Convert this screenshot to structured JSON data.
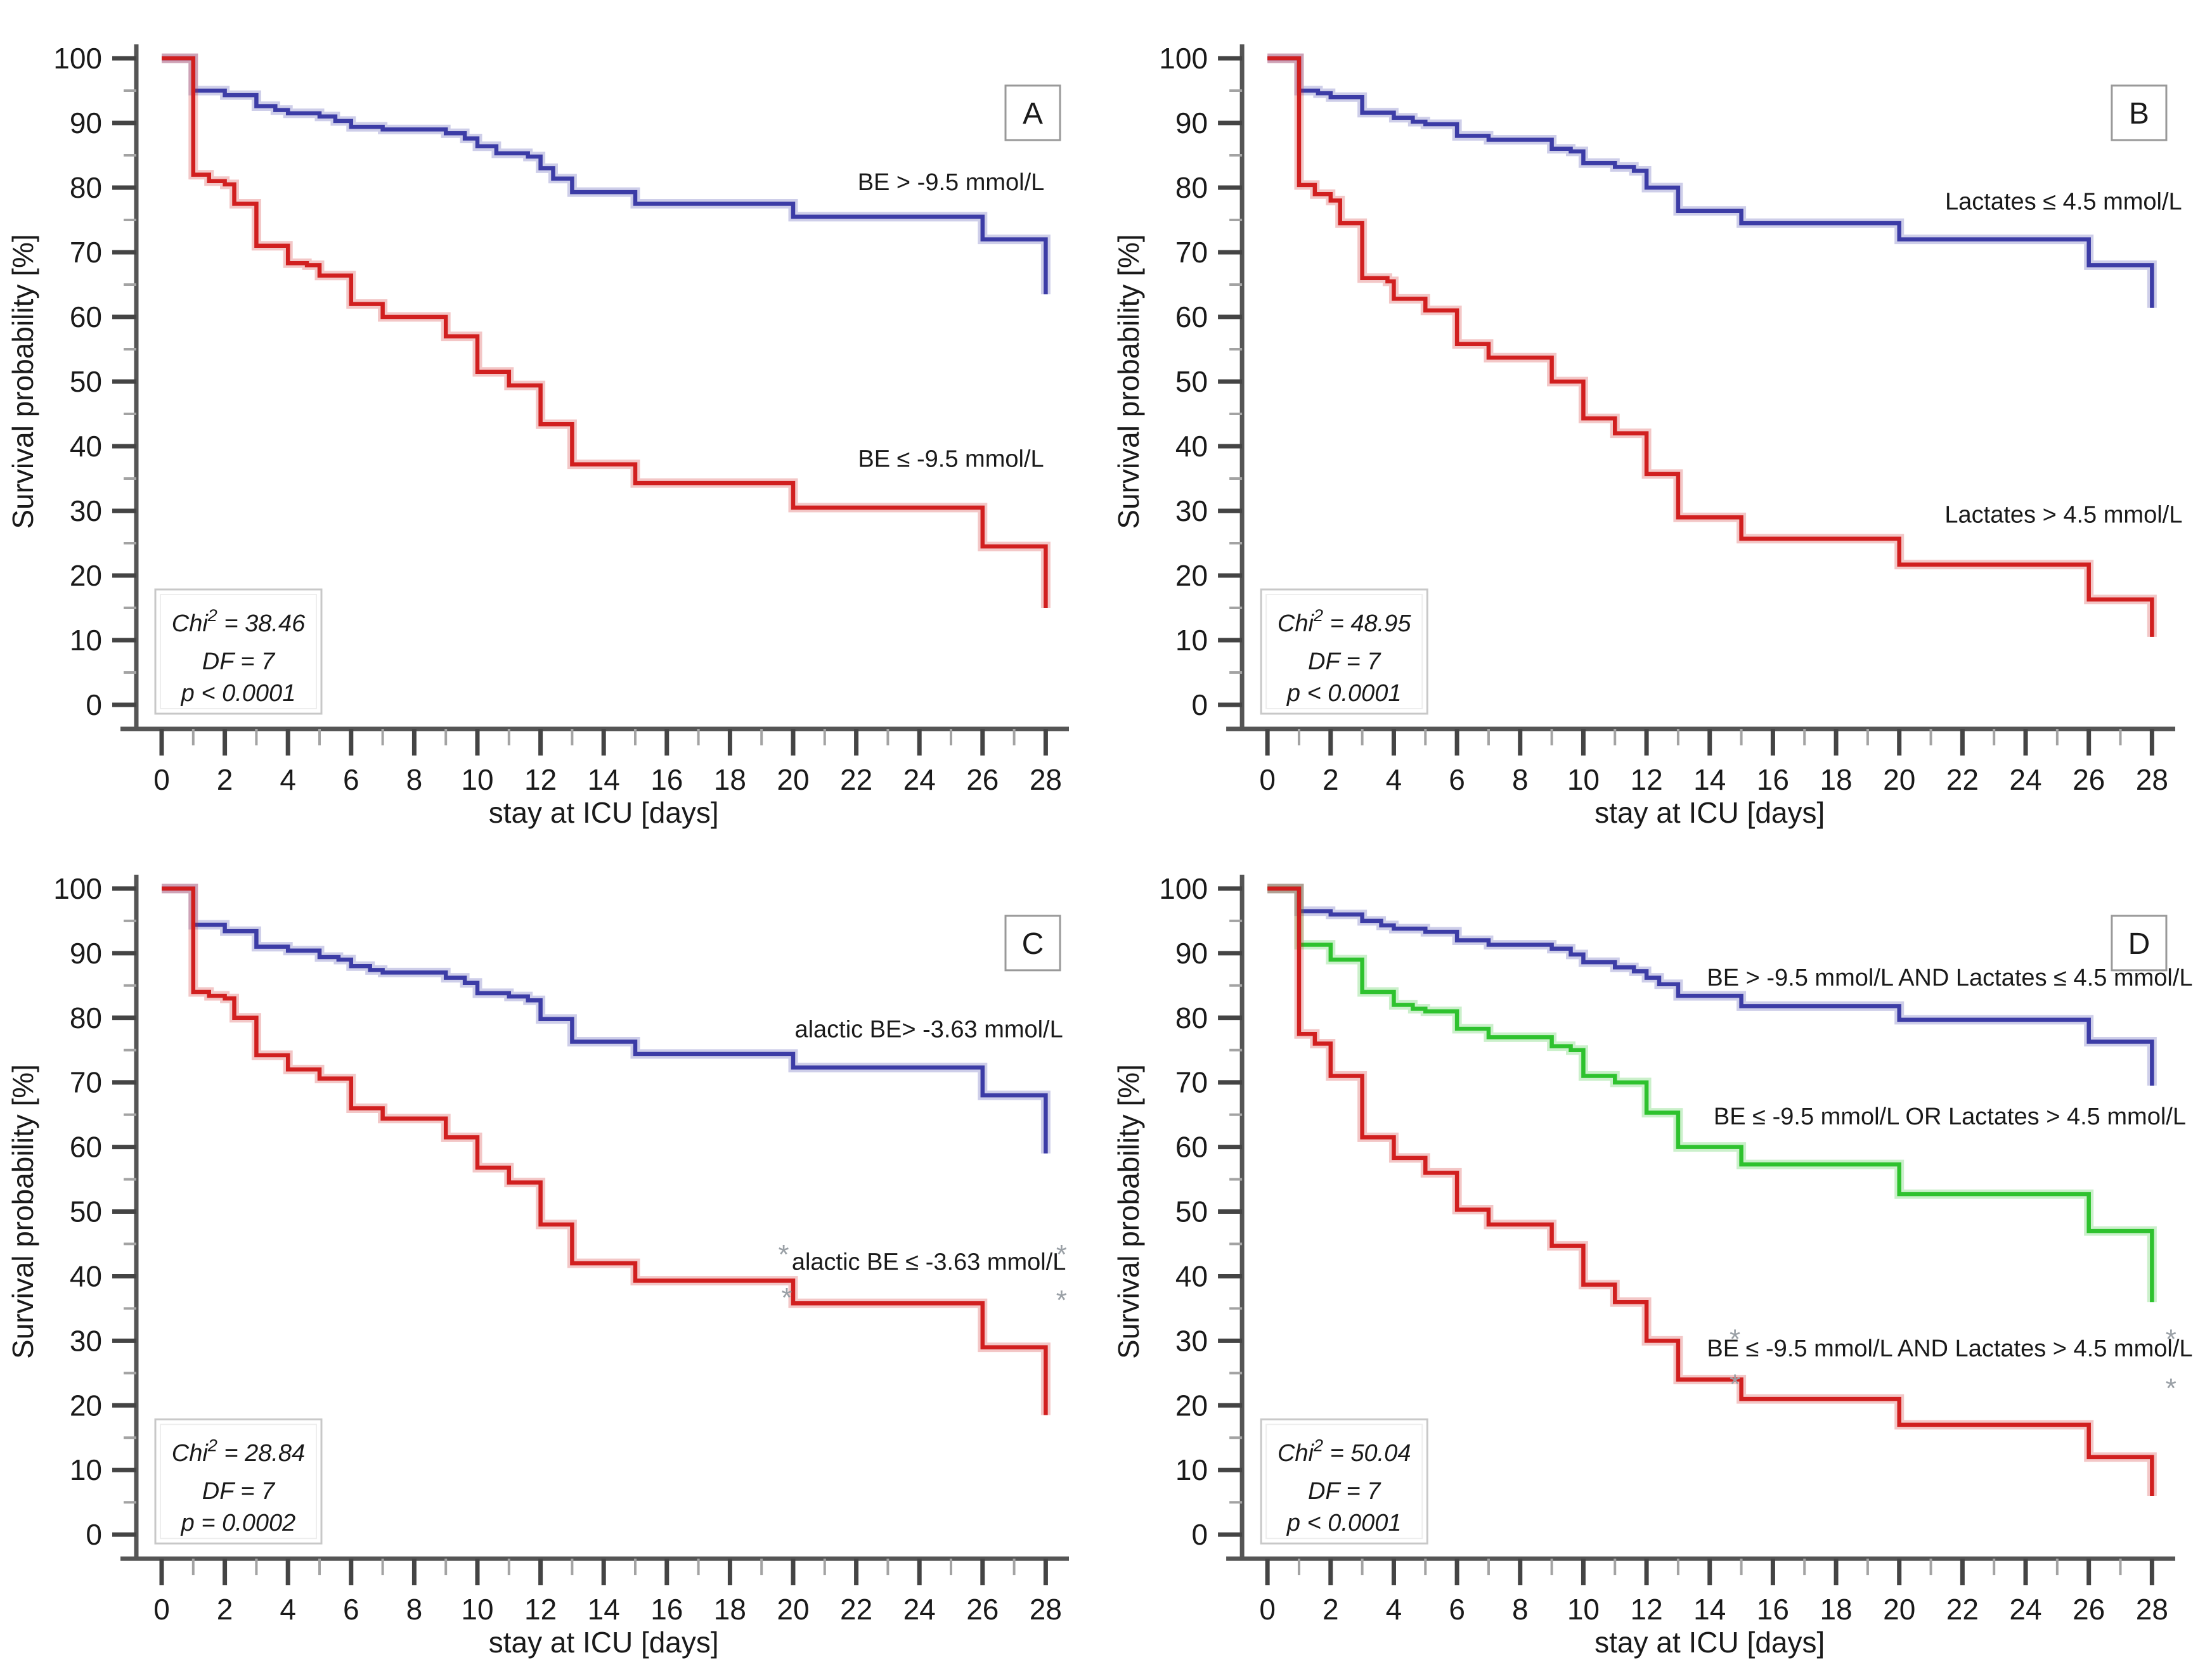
{
  "page": {
    "background": "#ffffff"
  },
  "colors": {
    "blue": "#3c3ca6",
    "red": "#d11f1f",
    "green": "#2ec22e",
    "axis": "#555555",
    "major_tick": "#444444",
    "minor_tick": "#a3a3a3",
    "text": "#1a1a1a",
    "censor": "#9aa0a6",
    "box_border": "#999999",
    "stats_border": "#c8c8c8"
  },
  "axes": {
    "x_label": "stay at ICU [days]",
    "y_label": "Survival probability [%]",
    "x_range": [
      0,
      28
    ],
    "y_range": [
      0,
      100
    ],
    "x_major_ticks": [
      0,
      2,
      4,
      6,
      8,
      10,
      12,
      14,
      16,
      18,
      20,
      22,
      24,
      26,
      28
    ],
    "x_minor_ticks": [
      1,
      3,
      5,
      7,
      9,
      11,
      13,
      15,
      17,
      19,
      21,
      23,
      25,
      27
    ],
    "y_major_ticks": [
      0,
      10,
      20,
      30,
      40,
      50,
      60,
      70,
      80,
      90,
      100
    ],
    "y_minor_ticks": [
      5,
      15,
      25,
      35,
      45,
      55,
      65,
      75,
      85,
      95
    ],
    "grid": "off",
    "legend_position": "inline-labels"
  },
  "chart_data": [
    {
      "panel": "A",
      "type": "line",
      "subtype": "kaplan-meier-step",
      "xlabel": "stay at ICU [days]",
      "ylabel": "Survival probability [%]",
      "xlim": [
        0,
        28
      ],
      "ylim": [
        0,
        100
      ],
      "stats": {
        "chi_word": "Chi",
        "chi_sup": "2",
        "chi_rest": " = 38.46",
        "df": "DF = 7",
        "p": "p < 0.0001"
      },
      "series": [
        {
          "name": "BE > -9.5 mmol/L",
          "color_key": "blue",
          "label": {
            "text": "BE >  -9.5 mmol/L",
            "t": 25.0,
            "p": 79.6
          },
          "points": [
            [
              0,
              100
            ],
            [
              1,
              95
            ],
            [
              2,
              94.3
            ],
            [
              3,
              92.6
            ],
            [
              3.6,
              92
            ],
            [
              4,
              91.5
            ],
            [
              5,
              91
            ],
            [
              5.5,
              90.3
            ],
            [
              6,
              89.4
            ],
            [
              7,
              89
            ],
            [
              9,
              88.4
            ],
            [
              9.6,
              87.6
            ],
            [
              10,
              86.4
            ],
            [
              10.6,
              85.3
            ],
            [
              11.6,
              84.8
            ],
            [
              12,
              83
            ],
            [
              12.4,
              81.4
            ],
            [
              13,
              79.3
            ],
            [
              15,
              77.5
            ],
            [
              20,
              75.5
            ],
            [
              26,
              72
            ],
            [
              28,
              63.5
            ]
          ]
        },
        {
          "name": "BE ≤ -9.5 mmol/L",
          "color_key": "red",
          "label": {
            "text": "BE ≤  -9.5 mmol/L",
            "t": 25.0,
            "p": 36.8
          },
          "points": [
            [
              0,
              100
            ],
            [
              1,
              82
            ],
            [
              1.5,
              81
            ],
            [
              2,
              80.5
            ],
            [
              2.3,
              77.5
            ],
            [
              3,
              71
            ],
            [
              4,
              68.3
            ],
            [
              4.6,
              68
            ],
            [
              5,
              66.4
            ],
            [
              6,
              62
            ],
            [
              7,
              60
            ],
            [
              9,
              57
            ],
            [
              10,
              51.5
            ],
            [
              11,
              49.4
            ],
            [
              12,
              43.4
            ],
            [
              13,
              37.2
            ],
            [
              15,
              34.3
            ],
            [
              20,
              30.5
            ],
            [
              26,
              24.5
            ],
            [
              28,
              15
            ]
          ]
        }
      ],
      "censor_marks": []
    },
    {
      "panel": "B",
      "type": "line",
      "subtype": "kaplan-meier-step",
      "xlabel": "stay at ICU [days]",
      "ylabel": "Survival probability [%]",
      "xlim": [
        0,
        28
      ],
      "ylim": [
        0,
        100
      ],
      "stats": {
        "chi_word": "Chi",
        "chi_sup": "2",
        "chi_rest": " = 48.95",
        "df": "DF = 7",
        "p": "p < 0.0001"
      },
      "series": [
        {
          "name": "Lactates ≤ 4.5 mmol/L",
          "color_key": "blue",
          "label": {
            "text": "Lactates ≤ 4.5 mmol/L",
            "t": 25.2,
            "p": 76.6
          },
          "points": [
            [
              0,
              100
            ],
            [
              1,
              95
            ],
            [
              1.6,
              94.6
            ],
            [
              2,
              94
            ],
            [
              3,
              91.6
            ],
            [
              4,
              90.8
            ],
            [
              4.6,
              90.2
            ],
            [
              5,
              89.8
            ],
            [
              6,
              88
            ],
            [
              7,
              87.4
            ],
            [
              9,
              86
            ],
            [
              9.6,
              85.6
            ],
            [
              10,
              83.8
            ],
            [
              11,
              83.2
            ],
            [
              11.6,
              82.6
            ],
            [
              12,
              80
            ],
            [
              13,
              76.4
            ],
            [
              15,
              74.5
            ],
            [
              20,
              72
            ],
            [
              26,
              68
            ],
            [
              28,
              61.4
            ]
          ]
        },
        {
          "name": "Lactates > 4.5 mmol/L",
          "color_key": "red",
          "label": {
            "text": "Lactates > 4.5 mmol/L",
            "t": 25.2,
            "p": 28.2
          },
          "points": [
            [
              0,
              100
            ],
            [
              1,
              80.4
            ],
            [
              1.5,
              79
            ],
            [
              2,
              78
            ],
            [
              2.3,
              74.5
            ],
            [
              3,
              66
            ],
            [
              3.8,
              65.5
            ],
            [
              4,
              62.8
            ],
            [
              5,
              61
            ],
            [
              6,
              55.8
            ],
            [
              7,
              53.7
            ],
            [
              9,
              50
            ],
            [
              10,
              44.3
            ],
            [
              11,
              42
            ],
            [
              12,
              35.7
            ],
            [
              13,
              29
            ],
            [
              15,
              25.7
            ],
            [
              20,
              21.7
            ],
            [
              26,
              16.3
            ],
            [
              28,
              10.5
            ]
          ]
        }
      ],
      "censor_marks": []
    },
    {
      "panel": "C",
      "type": "line",
      "subtype": "kaplan-meier-step",
      "xlabel": "stay at ICU [days]",
      "ylabel": "Survival probability [%]",
      "xlim": [
        0,
        28
      ],
      "ylim": [
        0,
        100
      ],
      "stats": {
        "chi_word": "Chi",
        "chi_sup": "2",
        "chi_rest": " = 28.84",
        "df": "DF = 7",
        "p": "p = 0.0002"
      },
      "series": [
        {
          "name": "alactic BE > -3.63 mmol/L",
          "color_key": "blue",
          "label": {
            "text": "alactic BE>  -3.63 mmol/L",
            "t": 24.3,
            "p": 77.0
          },
          "points": [
            [
              0,
              100
            ],
            [
              1,
              94.4
            ],
            [
              2,
              93.4
            ],
            [
              3,
              91
            ],
            [
              4,
              90.4
            ],
            [
              5,
              89.4
            ],
            [
              5.6,
              89
            ],
            [
              6,
              88
            ],
            [
              6.6,
              87.4
            ],
            [
              7,
              87
            ],
            [
              9,
              86.2
            ],
            [
              9.6,
              85.4
            ],
            [
              10,
              83.8
            ],
            [
              11,
              83.3
            ],
            [
              11.6,
              82.7
            ],
            [
              12,
              79.8
            ],
            [
              13,
              76.3
            ],
            [
              15,
              74.4
            ],
            [
              20,
              72.3
            ],
            [
              26,
              68
            ],
            [
              28,
              59
            ]
          ]
        },
        {
          "name": "alactic BE ≤ -3.63 mmol/L",
          "color_key": "red",
          "label": {
            "text": "alactic BE ≤  -3.63 mmol/L",
            "t": 24.3,
            "p": 41.0
          },
          "points": [
            [
              0,
              100
            ],
            [
              1,
              84
            ],
            [
              1.5,
              83.4
            ],
            [
              2,
              83
            ],
            [
              2.3,
              80
            ],
            [
              3,
              74.2
            ],
            [
              4,
              72
            ],
            [
              5,
              70.6
            ],
            [
              6,
              66
            ],
            [
              7,
              64.4
            ],
            [
              9,
              61.5
            ],
            [
              10,
              56.8
            ],
            [
              11,
              54.5
            ],
            [
              12,
              48
            ],
            [
              13,
              42
            ],
            [
              15,
              39.3
            ],
            [
              20,
              35.8
            ],
            [
              26,
              29
            ],
            [
              28,
              18.5
            ]
          ]
        }
      ],
      "censor_marks": [
        {
          "t": 19.7,
          "p": 43.3
        },
        {
          "t": 28.5,
          "p": 43.3
        },
        {
          "t": 19.8,
          "p": 36.6
        },
        {
          "t": 28.5,
          "p": 36.2
        }
      ]
    },
    {
      "panel": "D",
      "type": "line",
      "subtype": "kaplan-meier-step",
      "xlabel": "stay at ICU [days]",
      "ylabel": "Survival probability [%]",
      "xlim": [
        0,
        28
      ],
      "ylim": [
        0,
        100
      ],
      "stats": {
        "chi_word": "Chi",
        "chi_sup": "2",
        "chi_rest": " = 50.04",
        "df": "DF = 7",
        "p": "p < 0.0001"
      },
      "series": [
        {
          "name": "BE > -9.5 mmol/L AND Lactates ≤ 4.5 mmol/L",
          "color_key": "blue",
          "label": {
            "text": "BE >  -9.5 mmol/L AND  Lactates ≤ 4.5 mmol/L",
            "t": 21.6,
            "p": 85.0
          },
          "points": [
            [
              0,
              100
            ],
            [
              1,
              96.5
            ],
            [
              2,
              96
            ],
            [
              3,
              95
            ],
            [
              3.6,
              94.3
            ],
            [
              4,
              93.8
            ],
            [
              5,
              93.3
            ],
            [
              6,
              92
            ],
            [
              7,
              91.3
            ],
            [
              9,
              90.7
            ],
            [
              9.6,
              89.8
            ],
            [
              10,
              88.6
            ],
            [
              11,
              87.8
            ],
            [
              11.6,
              87.2
            ],
            [
              12,
              86.2
            ],
            [
              12.4,
              85.2
            ],
            [
              13,
              83.4
            ],
            [
              15,
              81.8
            ],
            [
              20,
              79.7
            ],
            [
              26,
              76.3
            ],
            [
              28,
              69.5
            ]
          ]
        },
        {
          "name": "BE ≤ -9.5 mmol/L OR Lactates > 4.5 mmol/L",
          "color_key": "green",
          "label": {
            "text": "BE ≤  -9.5 mmol/L OR Lactates > 4.5 mmol/L",
            "t": 21.6,
            "p": 63.5
          },
          "points": [
            [
              0,
              100
            ],
            [
              1,
              91.3
            ],
            [
              2,
              89
            ],
            [
              3,
              84
            ],
            [
              4,
              82
            ],
            [
              4.6,
              81.4
            ],
            [
              5,
              81
            ],
            [
              6,
              78.3
            ],
            [
              7,
              77
            ],
            [
              9,
              75.6
            ],
            [
              9.6,
              75
            ],
            [
              10,
              71
            ],
            [
              11,
              70
            ],
            [
              12,
              65.3
            ],
            [
              13,
              60
            ],
            [
              15,
              57.3
            ],
            [
              20,
              52.7
            ],
            [
              26,
              47
            ],
            [
              28,
              36
            ]
          ]
        },
        {
          "name": "BE ≤ -9.5 mmol/L AND Lactates > 4.5 mmol/L",
          "color_key": "red",
          "label": {
            "text": "BE ≤  -9.5 mmol/L AND  Lactates > 4.5 mmol/L",
            "t": 21.6,
            "p": 27.6
          },
          "points": [
            [
              0,
              100
            ],
            [
              1,
              77.5
            ],
            [
              1.5,
              76
            ],
            [
              2,
              71
            ],
            [
              3,
              61.5
            ],
            [
              4,
              58.3
            ],
            [
              5,
              56
            ],
            [
              6,
              50.3
            ],
            [
              7,
              48
            ],
            [
              9,
              44.7
            ],
            [
              10,
              38.7
            ],
            [
              11,
              36
            ],
            [
              12,
              30
            ],
            [
              13,
              24
            ],
            [
              15,
              21
            ],
            [
              20,
              17
            ],
            [
              26,
              12
            ],
            [
              28,
              6
            ]
          ]
        }
      ],
      "censor_marks": [
        {
          "t": 14.8,
          "p": 30.2
        },
        {
          "t": 28.6,
          "p": 30.2
        },
        {
          "t": 14.8,
          "p": 23.2
        },
        {
          "t": 28.6,
          "p": 22.6
        }
      ]
    }
  ]
}
